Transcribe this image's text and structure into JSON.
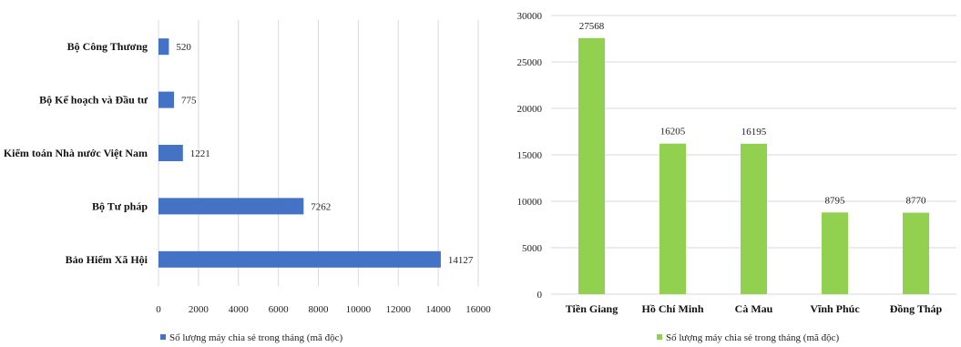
{
  "chart_data": [
    {
      "type": "bar",
      "orientation": "horizontal",
      "categories": [
        "Bộ Công Thương",
        "Bộ Kế hoạch và Đầu tư",
        "Kiểm toán Nhà nước Việt Nam",
        "Bộ Tư pháp",
        "Bảo Hiểm Xã Hội"
      ],
      "values": [
        520,
        775,
        1221,
        7262,
        14127
      ],
      "data_labels": [
        "520",
        "775",
        "1221",
        "7262",
        "14127"
      ],
      "series": [
        {
          "name": "Số lượng máy chia sẻ trong tháng (mã độc)",
          "values": [
            520,
            775,
            1221,
            7262,
            14127
          ]
        }
      ],
      "xlim": [
        0,
        16000
      ],
      "x_ticks": [
        "0",
        "2000",
        "4000",
        "6000",
        "8000",
        "10000",
        "12000",
        "14000",
        "16000"
      ],
      "grid": true,
      "legend_position": "bottom",
      "color": "#4472c4"
    },
    {
      "type": "bar",
      "orientation": "vertical",
      "categories": [
        "Tiền Giang",
        "Hồ Chí Minh",
        "Cà Mau",
        "Vĩnh Phúc",
        "Đồng Tháp"
      ],
      "values": [
        27568,
        16205,
        16195,
        8795,
        8770
      ],
      "data_labels": [
        "27568",
        "16205",
        "16195",
        "8795",
        "8770"
      ],
      "series": [
        {
          "name": "Số lượng máy chia sẻ trong tháng (mã độc)",
          "values": [
            27568,
            16205,
            16195,
            8795,
            8770
          ]
        }
      ],
      "ylim": [
        0,
        30000
      ],
      "y_ticks": [
        "0",
        "5000",
        "10000",
        "15000",
        "20000",
        "25000",
        "30000"
      ],
      "grid": true,
      "legend_position": "bottom",
      "color": "#92d050"
    }
  ]
}
